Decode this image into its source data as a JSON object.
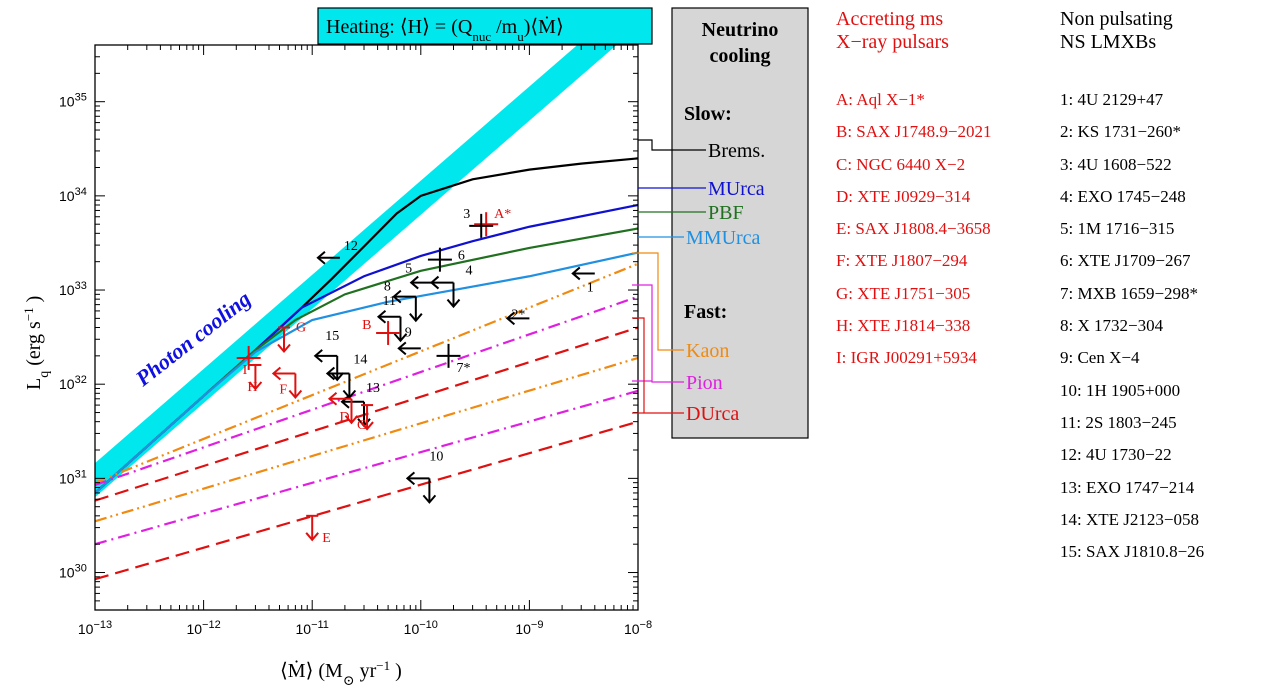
{
  "chart_data": {
    "type": "line",
    "xscale": "log",
    "yscale": "log",
    "xlim": [
      1e-13,
      1e-08
    ],
    "ylim": [
      4e+29,
      4e+35
    ],
    "x_tick_labels": [
      "10",
      "10",
      "10",
      "10",
      "10",
      "10"
    ],
    "x_tick_exponents": [
      "−13",
      "−12",
      "−11",
      "−10",
      "−9",
      "−8"
    ],
    "y_tick_labels": [
      "10",
      "10",
      "10",
      "10",
      "10",
      "10"
    ],
    "y_tick_exponents": [
      "30",
      "31",
      "32",
      "33",
      "34",
      "35"
    ],
    "xlabel": "⟨Ṁ⟩ (M⊙ yr⁻¹ )",
    "ylabel": "Lq (erg s⁻¹ )",
    "heating_label": "Heating: ⟨H⟩ = (Qnuc /mu )⟨Ṁ⟩",
    "photon_label": "Photon cooling",
    "colors": {
      "brems": "#000000",
      "murca": "#1010d0",
      "pbf": "#207020",
      "mmurca": "#2090e0",
      "kaon": "#f08a10",
      "pion": "#e020e0",
      "durca": "#e01010",
      "band": "#00e8ee",
      "red": "#e01010"
    },
    "series": [
      {
        "name": "Brems.",
        "color": "#000000",
        "style": "solid",
        "x": [
          1e-13,
          1e-12,
          3e-12,
          8e-12,
          1.5e-11,
          3e-11,
          6e-11,
          1e-10,
          3e-10,
          1e-09,
          3e-09,
          1e-08
        ],
        "y": [
          7e+30,
          7.5e+31,
          2.3e+32,
          6.5e+32,
          1.3e+33,
          2.9e+33,
          6.5e+33,
          1e+34,
          1.5e+34,
          1.9e+34,
          2.2e+34,
          2.5e+34
        ]
      },
      {
        "name": "MUrca",
        "color": "#1010d0",
        "style": "solid",
        "x": [
          1e-13,
          1e-12,
          3e-12,
          8e-12,
          3e-11,
          1e-10,
          3e-10,
          1e-09,
          1e-08
        ],
        "y": [
          7e+30,
          7.5e+31,
          2.3e+32,
          6.5e+32,
          1.4e+33,
          2.3e+33,
          3.3e+33,
          4.7e+33,
          8e+33
        ]
      },
      {
        "name": "PBF",
        "color": "#207020",
        "style": "solid",
        "x": [
          1e-13,
          1e-12,
          3e-12,
          7e-12,
          2e-11,
          1e-10,
          1e-09,
          1e-08
        ],
        "y": [
          7e+30,
          7.5e+31,
          2.3e+32,
          4.8e+32,
          9e+32,
          1.6e+33,
          2.8e+33,
          4.5e+33
        ]
      },
      {
        "name": "MMUrca",
        "color": "#2090e0",
        "style": "solid",
        "x": [
          1e-13,
          1e-12,
          3e-12,
          1e-11,
          5e-11,
          2e-10,
          1e-09,
          1e-08
        ],
        "y": [
          7e+30,
          7.5e+31,
          2.2e+32,
          4.8e+32,
          7.5e+32,
          1e+33,
          1.4e+33,
          2.5e+33
        ]
      },
      {
        "name": "Kaon",
        "color": "#f08a10",
        "style": "dotdotdash",
        "x": [
          1e-13,
          1e-08
        ],
        "y": [
          9e+30,
          1.9e+33
        ]
      },
      {
        "name": "Kaon",
        "color": "#f08a10",
        "style": "dotdotdash",
        "x": [
          1e-13,
          1e-08
        ],
        "y": [
          3.5e+30,
          1.9e+32
        ]
      },
      {
        "name": "Pion",
        "color": "#e020e0",
        "style": "dashdot",
        "x": [
          1e-13,
          1e-08
        ],
        "y": [
          8.5e+30,
          8.5e+32
        ]
      },
      {
        "name": "Pion",
        "color": "#e020e0",
        "style": "dashdot",
        "x": [
          1e-13,
          1e-08
        ],
        "y": [
          2e+30,
          8.5e+31
        ]
      },
      {
        "name": "DUrca",
        "color": "#e01010",
        "style": "dash",
        "x": [
          1e-13,
          1e-08
        ],
        "y": [
          5.8e+30,
          4e+32
        ]
      },
      {
        "name": "DUrca",
        "color": "#e01010",
        "style": "dash",
        "x": [
          1e-13,
          1e-08
        ],
        "y": [
          8.5e+29,
          4e+31
        ]
      }
    ],
    "points": [
      {
        "label": "A*",
        "color": "#e01010",
        "kind": "cross",
        "x": 4e-10,
        "y": 5e+33,
        "label_dx": 8,
        "label_dy": -6
      },
      {
        "label": "3",
        "color": "#000000",
        "kind": "cross",
        "x": 3.6e-10,
        "y": 4.8e+33,
        "label_dx": -18,
        "label_dy": -8
      },
      {
        "label": "I",
        "color": "#e01010",
        "kind": "cross",
        "x": 2.6e-12,
        "y": 1.9e+32,
        "label_dx": -6,
        "label_dy": 16
      },
      {
        "label": "1",
        "color": "#000000",
        "kind": "left",
        "x": 4e-09,
        "y": 1.5e+33,
        "label_dx": -8,
        "label_dy": 18
      },
      {
        "label": "2*",
        "color": "#000000",
        "kind": "left",
        "x": 1e-09,
        "y": 5e+32,
        "label_dx": -18,
        "label_dy": 0
      },
      {
        "label": "4",
        "color": "#000000",
        "kind": "leftdown",
        "x": 2e-10,
        "y": 1.2e+33,
        "label_dx": 12,
        "label_dy": -8
      },
      {
        "label": "5",
        "color": "#000000",
        "kind": "left",
        "x": 1.3e-10,
        "y": 1.2e+33,
        "label_dx": -28,
        "label_dy": -10
      },
      {
        "label": "6",
        "color": "#000000",
        "kind": "cross",
        "x": 1.5e-10,
        "y": 2.1e+33,
        "label_dx": 18,
        "label_dy": 0
      },
      {
        "label": "7*",
        "color": "#000000",
        "kind": "cross",
        "x": 1.8e-10,
        "y": 2e+32,
        "label_dx": 8,
        "label_dy": 16
      },
      {
        "label": "8",
        "color": "#000000",
        "kind": "leftdown",
        "x": 9e-11,
        "y": 8.5e+32,
        "label_dx": -32,
        "label_dy": -6
      },
      {
        "label": "9",
        "color": "#000000",
        "kind": "left",
        "x": 1e-10,
        "y": 2.4e+32,
        "label_dx": -16,
        "label_dy": -12
      },
      {
        "label": "10",
        "color": "#000000",
        "kind": "leftdown",
        "x": 1.2e-10,
        "y": 1e+31,
        "label_dx": 0,
        "label_dy": -18
      },
      {
        "label": "11",
        "color": "#000000",
        "kind": "leftdown",
        "x": 6.5e-11,
        "y": 5.2e+32,
        "label_dx": -18,
        "label_dy": -12
      },
      {
        "label": "12",
        "color": "#000000",
        "kind": "left",
        "x": 1.8e-11,
        "y": 2.2e+33,
        "label_dx": 4,
        "label_dy": -8
      },
      {
        "label": "13",
        "color": "#000000",
        "kind": "leftdown",
        "x": 3e-11,
        "y": 6.5e+31,
        "label_dx": 2,
        "label_dy": -10
      },
      {
        "label": "14",
        "color": "#000000",
        "kind": "leftdown",
        "x": 2.2e-11,
        "y": 1.3e+32,
        "label_dx": 4,
        "label_dy": -10
      },
      {
        "label": "15",
        "color": "#000000",
        "kind": "leftdown",
        "x": 1.7e-11,
        "y": 2e+32,
        "label_dx": -12,
        "label_dy": -16
      },
      {
        "label": "B",
        "color": "#e01010",
        "kind": "cross",
        "x": 5e-11,
        "y": 3.5e+32,
        "label_dx": -26,
        "label_dy": -4
      },
      {
        "label": "C",
        "color": "#e01010",
        "kind": "down",
        "x": 3.2e-11,
        "y": 6e+31,
        "label_dx": -10,
        "label_dy": 24
      },
      {
        "label": "D",
        "color": "#e01010",
        "kind": "leftdown",
        "x": 2.3e-11,
        "y": 7e+31,
        "label_dx": -12,
        "label_dy": 22
      },
      {
        "label": "E",
        "color": "#e01010",
        "kind": "down",
        "x": 1e-11,
        "y": 4e+30,
        "label_dx": 10,
        "label_dy": 26
      },
      {
        "label": "F",
        "color": "#e01010",
        "kind": "leftdown",
        "x": 7e-12,
        "y": 1.3e+32,
        "label_dx": -16,
        "label_dy": 20
      },
      {
        "label": "G",
        "color": "#e01010",
        "kind": "down",
        "x": 5.5e-12,
        "y": 4e+32,
        "label_dx": 12,
        "label_dy": 4
      },
      {
        "label": "H",
        "color": "#e01010",
        "kind": "down",
        "x": 3e-12,
        "y": 1.6e+32,
        "label_dx": -8,
        "label_dy": 26
      }
    ]
  },
  "neutrino_box": {
    "title_line1": "Neutrino",
    "title_line2": "cooling",
    "slow_label": "Slow:",
    "fast_label": "Fast:",
    "brems_label": "Brems.",
    "murca_label": "MUrca",
    "pbf_label": "PBF",
    "mmurca_label": "MMUrca",
    "kaon_label": "Kaon",
    "pion_label": "Pion",
    "durca_label": "DUrca"
  },
  "pulsars": {
    "title_line1": "Accreting ms",
    "title_line2": "X−ray pulsars",
    "items": [
      "A: Aql X−1*",
      "B: SAX J1748.9−2021",
      "C: NGC 6440 X−2",
      "D: XTE J0929−314",
      "E: SAX J1808.4−3658",
      "F: XTE J1807−294",
      "G: XTE J1751−305",
      "H: XTE J1814−338",
      "I: IGR J00291+5934"
    ]
  },
  "lmxbs": {
    "title_line1": "Non pulsating",
    "title_line2": "NS LMXBs",
    "items": [
      "1:  4U 2129+47",
      "2:  KS 1731−260*",
      "3:  4U 1608−522",
      "4:  EXO 1745−248",
      "5:  1M 1716−315",
      "6:  XTE J1709−267",
      "7:  MXB 1659−298*",
      "8:  X 1732−304",
      "9:  Cen X−4",
      "10: 1H 1905+000",
      "11: 2S 1803−245",
      "12: 4U 1730−22",
      "13: EXO 1747−214",
      "14: XTE J2123−058",
      "15: SAX J1810.8−26"
    ]
  }
}
